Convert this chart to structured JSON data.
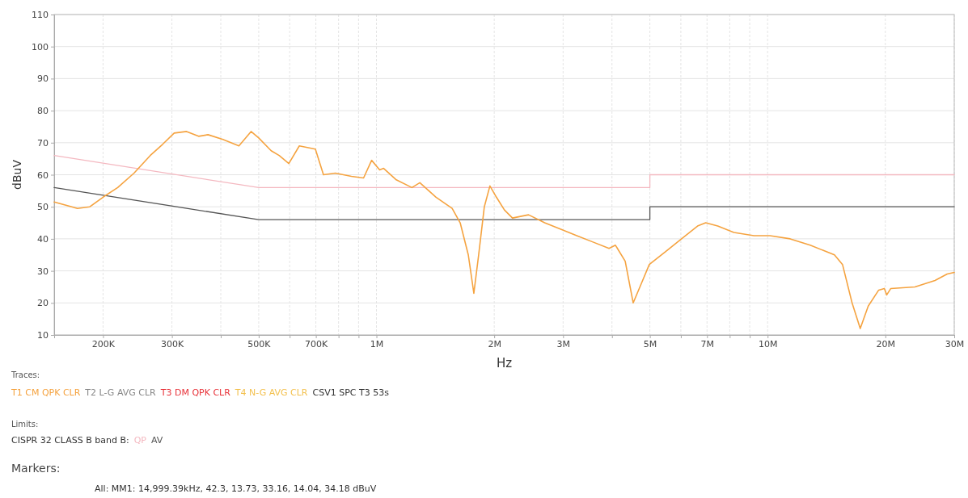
{
  "chart_data": {
    "type": "line",
    "xlabel": "Hz",
    "ylabel": "dBuV",
    "log": "x",
    "xlim": [
      150000,
      30000000
    ],
    "ylim": [
      10,
      110
    ],
    "xticks": [
      {
        "value": 200000,
        "label": "200K"
      },
      {
        "value": 300000,
        "label": "300K"
      },
      {
        "value": 400000,
        "label": null
      },
      {
        "value": 500000,
        "label": "500K"
      },
      {
        "value": 600000,
        "label": null
      },
      {
        "value": 700000,
        "label": "700K"
      },
      {
        "value": 800000,
        "label": null
      },
      {
        "value": 900000,
        "label": null
      },
      {
        "value": 1000000,
        "label": "1M"
      },
      {
        "value": 2000000,
        "label": "2M"
      },
      {
        "value": 3000000,
        "label": "3M"
      },
      {
        "value": 4000000,
        "label": null
      },
      {
        "value": 5000000,
        "label": "5M"
      },
      {
        "value": 6000000,
        "label": null
      },
      {
        "value": 7000000,
        "label": "7M"
      },
      {
        "value": 8000000,
        "label": null
      },
      {
        "value": 9000000,
        "label": null
      },
      {
        "value": 10000000,
        "label": "10M"
      },
      {
        "value": 20000000,
        "label": "20M"
      },
      {
        "value": 30000000,
        "label": "30M"
      }
    ],
    "yticks": [
      10,
      20,
      30,
      40,
      50,
      60,
      70,
      80,
      90,
      100,
      110
    ],
    "grid": true,
    "legend": "bottom",
    "marker": "none",
    "series": [
      {
        "name": "T1 CM QPK CLR",
        "color": "#f5a340",
        "x": [
          150000,
          172000,
          185000,
          200000,
          218000,
          240000,
          264000,
          284000,
          304000,
          327000,
          351000,
          371000,
          405000,
          445000,
          478000,
          500000,
          538000,
          564000,
          597000,
          635000,
          698000,
          732000,
          785000,
          863000,
          927000,
          972000,
          1019000,
          1043000,
          1121000,
          1232000,
          1291000,
          1420000,
          1561000,
          1637000,
          1717000,
          1774000,
          1825000,
          1887000,
          1950000,
          2026000,
          2124000,
          2227000,
          2448000,
          2692000,
          2960000,
          3252000,
          3577000,
          3932000,
          4083000,
          4324000,
          4533000,
          4753000,
          4984000,
          5480000,
          6025000,
          6620000,
          6944000,
          7456000,
          8197000,
          9226000,
          10140000,
          11420000,
          12850000,
          14820000,
          15540000,
          16440000,
          17250000,
          18080000,
          19230000,
          19880000,
          20160000,
          20650000,
          23800000,
          26790000,
          28770000,
          30000000
        ],
        "values": [
          51.5,
          49.5,
          50,
          53,
          56,
          60.5,
          66,
          69.5,
          73,
          73.5,
          72,
          72.5,
          71,
          69,
          73.5,
          71.5,
          67.5,
          66,
          63.5,
          69,
          68,
          60,
          60.5,
          59.5,
          59,
          64.5,
          61.5,
          62,
          58.5,
          56,
          57.5,
          53,
          49.5,
          45,
          35,
          23,
          35,
          50,
          56.5,
          53,
          49,
          46.5,
          47.5,
          45,
          43,
          41,
          39,
          37,
          38,
          33,
          20,
          26,
          32,
          36,
          40,
          44,
          45,
          44,
          42,
          41,
          41,
          40,
          38,
          35,
          32,
          20,
          12,
          19,
          24,
          24.5,
          22.5,
          24.5,
          25,
          27,
          29,
          29.5
        ]
      },
      {
        "name": "QP",
        "color": "#f4b8c0",
        "x": [
          150000,
          500000,
          5000000,
          5000000,
          30000000
        ],
        "values": [
          66,
          56,
          56,
          60,
          60
        ]
      },
      {
        "name": "AV",
        "color": "#555555",
        "x": [
          150000,
          500000,
          5000000,
          5000000,
          30000000
        ],
        "values": [
          56,
          46,
          46,
          50,
          50
        ]
      }
    ],
    "annotations": [
      "Traces:",
      "T2 L-G AVG CLR",
      "T3 DM QPK CLR",
      "T4 N-G AVG CLR",
      "CSV1 SPC T3 53s",
      "Limits:",
      "CISPR 32 CLASS B band B:",
      "Markers:",
      "All: MM1: 14,999.39kHz, 42.3, 13.73, 33.16, 14.04, 34.18 dBuV"
    ]
  }
}
